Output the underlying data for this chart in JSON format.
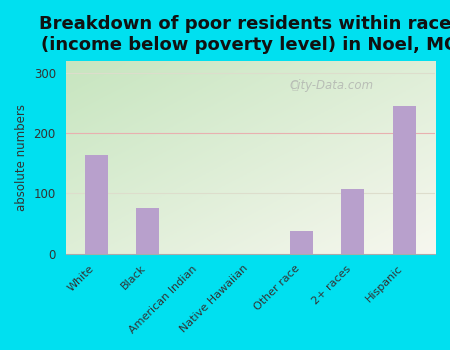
{
  "title": "Breakdown of poor residents within races\n(income below poverty level) in Noel, MO",
  "categories": [
    "White",
    "Black",
    "American Indian",
    "Native Hawaiian",
    "Other race",
    "2+ races",
    "Hispanic"
  ],
  "values": [
    163,
    75,
    0,
    0,
    38,
    108,
    245
  ],
  "bar_color": "#b8a0cc",
  "ylabel": "absolute numbers",
  "ylim": [
    0,
    320
  ],
  "yticks": [
    0,
    100,
    200,
    300
  ],
  "background_outer": "#00e0f0",
  "title_fontsize": 13,
  "watermark": "City-Data.com"
}
